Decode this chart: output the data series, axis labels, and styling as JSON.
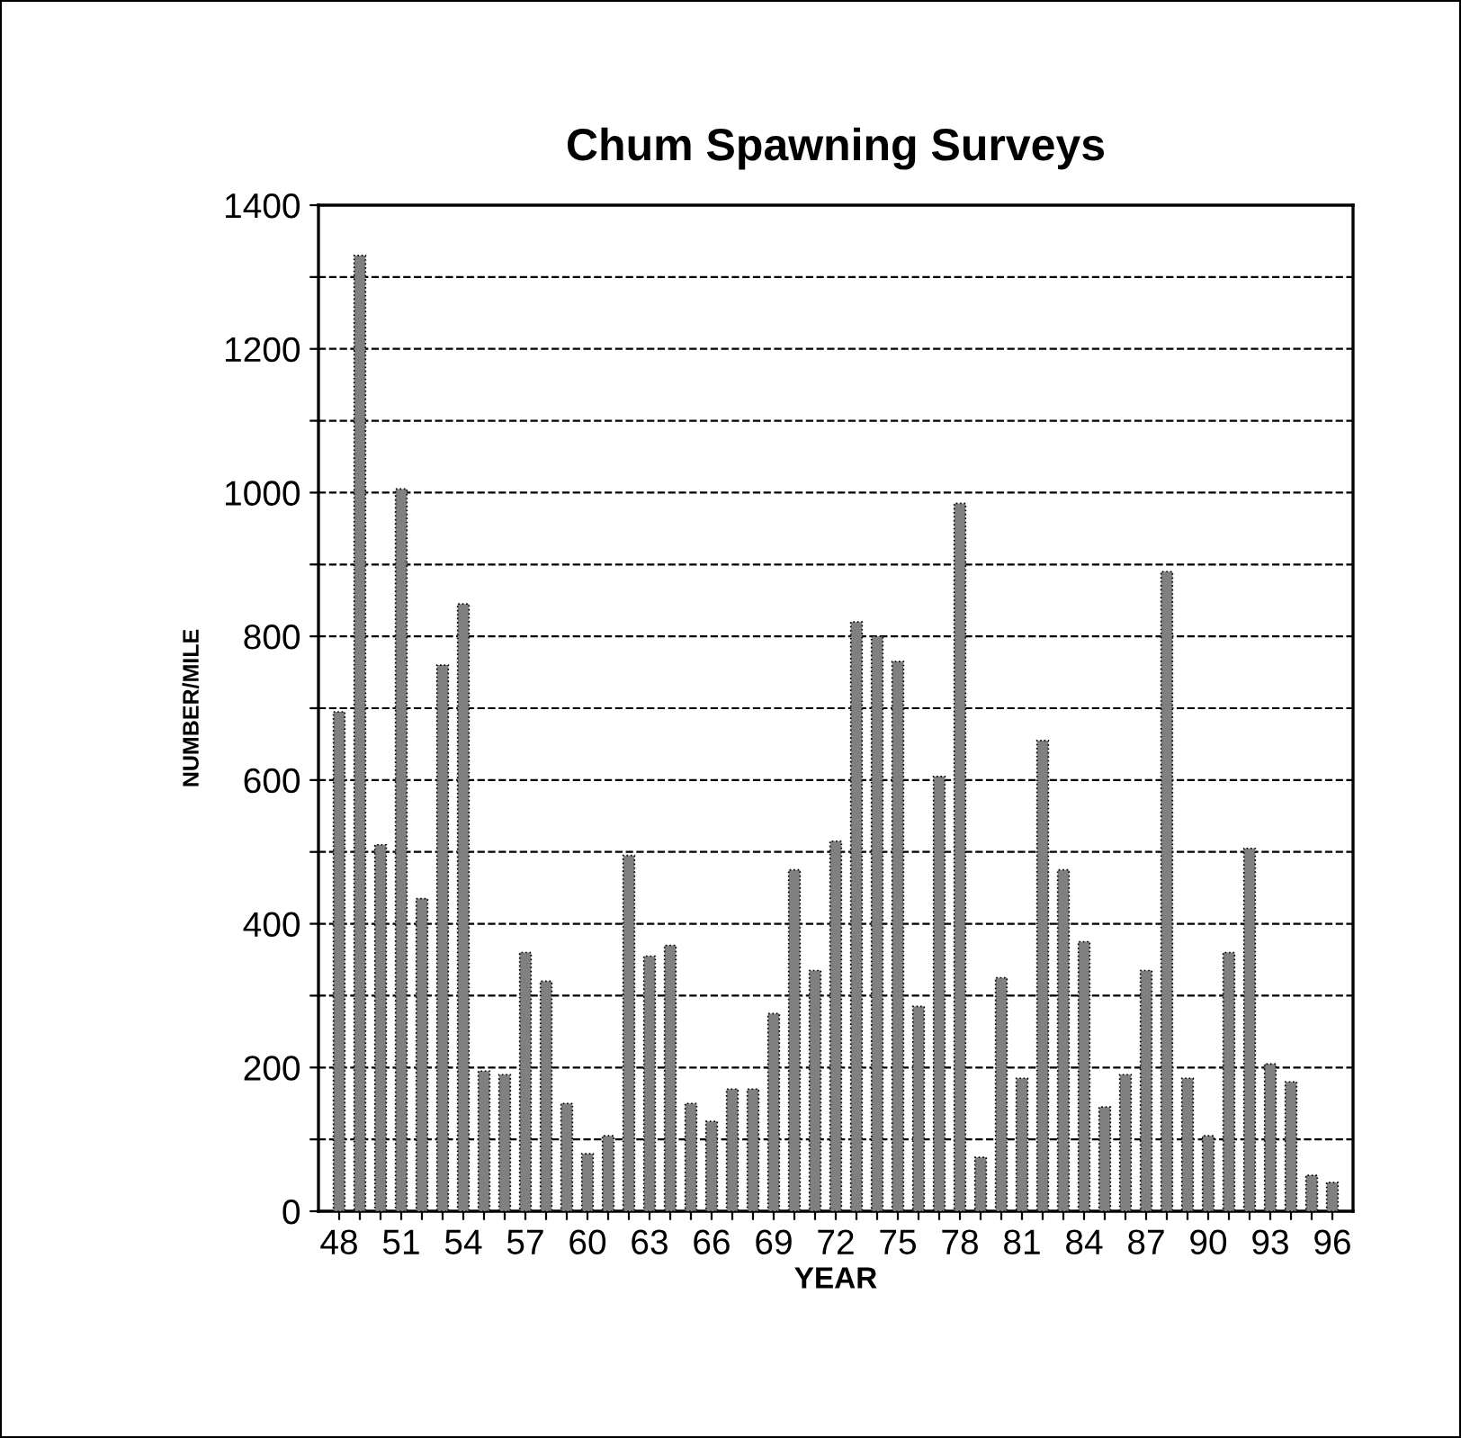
{
  "chart_data": {
    "type": "bar",
    "title": "Chum Spawning Surveys",
    "xlabel": "YEAR",
    "ylabel": "NUMBER/MILE",
    "categories": [
      "48",
      null,
      null,
      "51",
      null,
      null,
      "54",
      null,
      null,
      "57",
      null,
      null,
      "60",
      null,
      null,
      "63",
      null,
      null,
      "66",
      null,
      null,
      "69",
      null,
      null,
      "72",
      null,
      null,
      "75",
      null,
      null,
      "78",
      null,
      null,
      "81",
      null,
      null,
      "84",
      null,
      null,
      "87",
      null,
      null,
      "90",
      null,
      null,
      "93",
      null,
      null,
      "96"
    ],
    "values": [
      695,
      1330,
      510,
      1005,
      435,
      760,
      845,
      195,
      190,
      360,
      320,
      150,
      80,
      105,
      495,
      355,
      370,
      150,
      125,
      170,
      170,
      275,
      475,
      335,
      515,
      820,
      800,
      765,
      285,
      605,
      985,
      75,
      325,
      185,
      655,
      475,
      375,
      145,
      190,
      335,
      890,
      185,
      105,
      360,
      505,
      205,
      180,
      50,
      40
    ],
    "color": "#808080",
    "ylim": [
      0,
      1400
    ],
    "yticks": [
      0,
      {
        "value": 100,
        "label": null
      },
      200,
      {
        "value": 300,
        "label": null
      },
      400,
      {
        "value": 500,
        "label": null
      },
      600,
      {
        "value": 700,
        "label": null
      },
      800,
      {
        "value": 900,
        "label": null
      },
      1000,
      {
        "value": 1100,
        "label": null
      },
      1200,
      {
        "value": 1300,
        "label": null
      },
      1400
    ],
    "grid": "y",
    "legend": false
  }
}
